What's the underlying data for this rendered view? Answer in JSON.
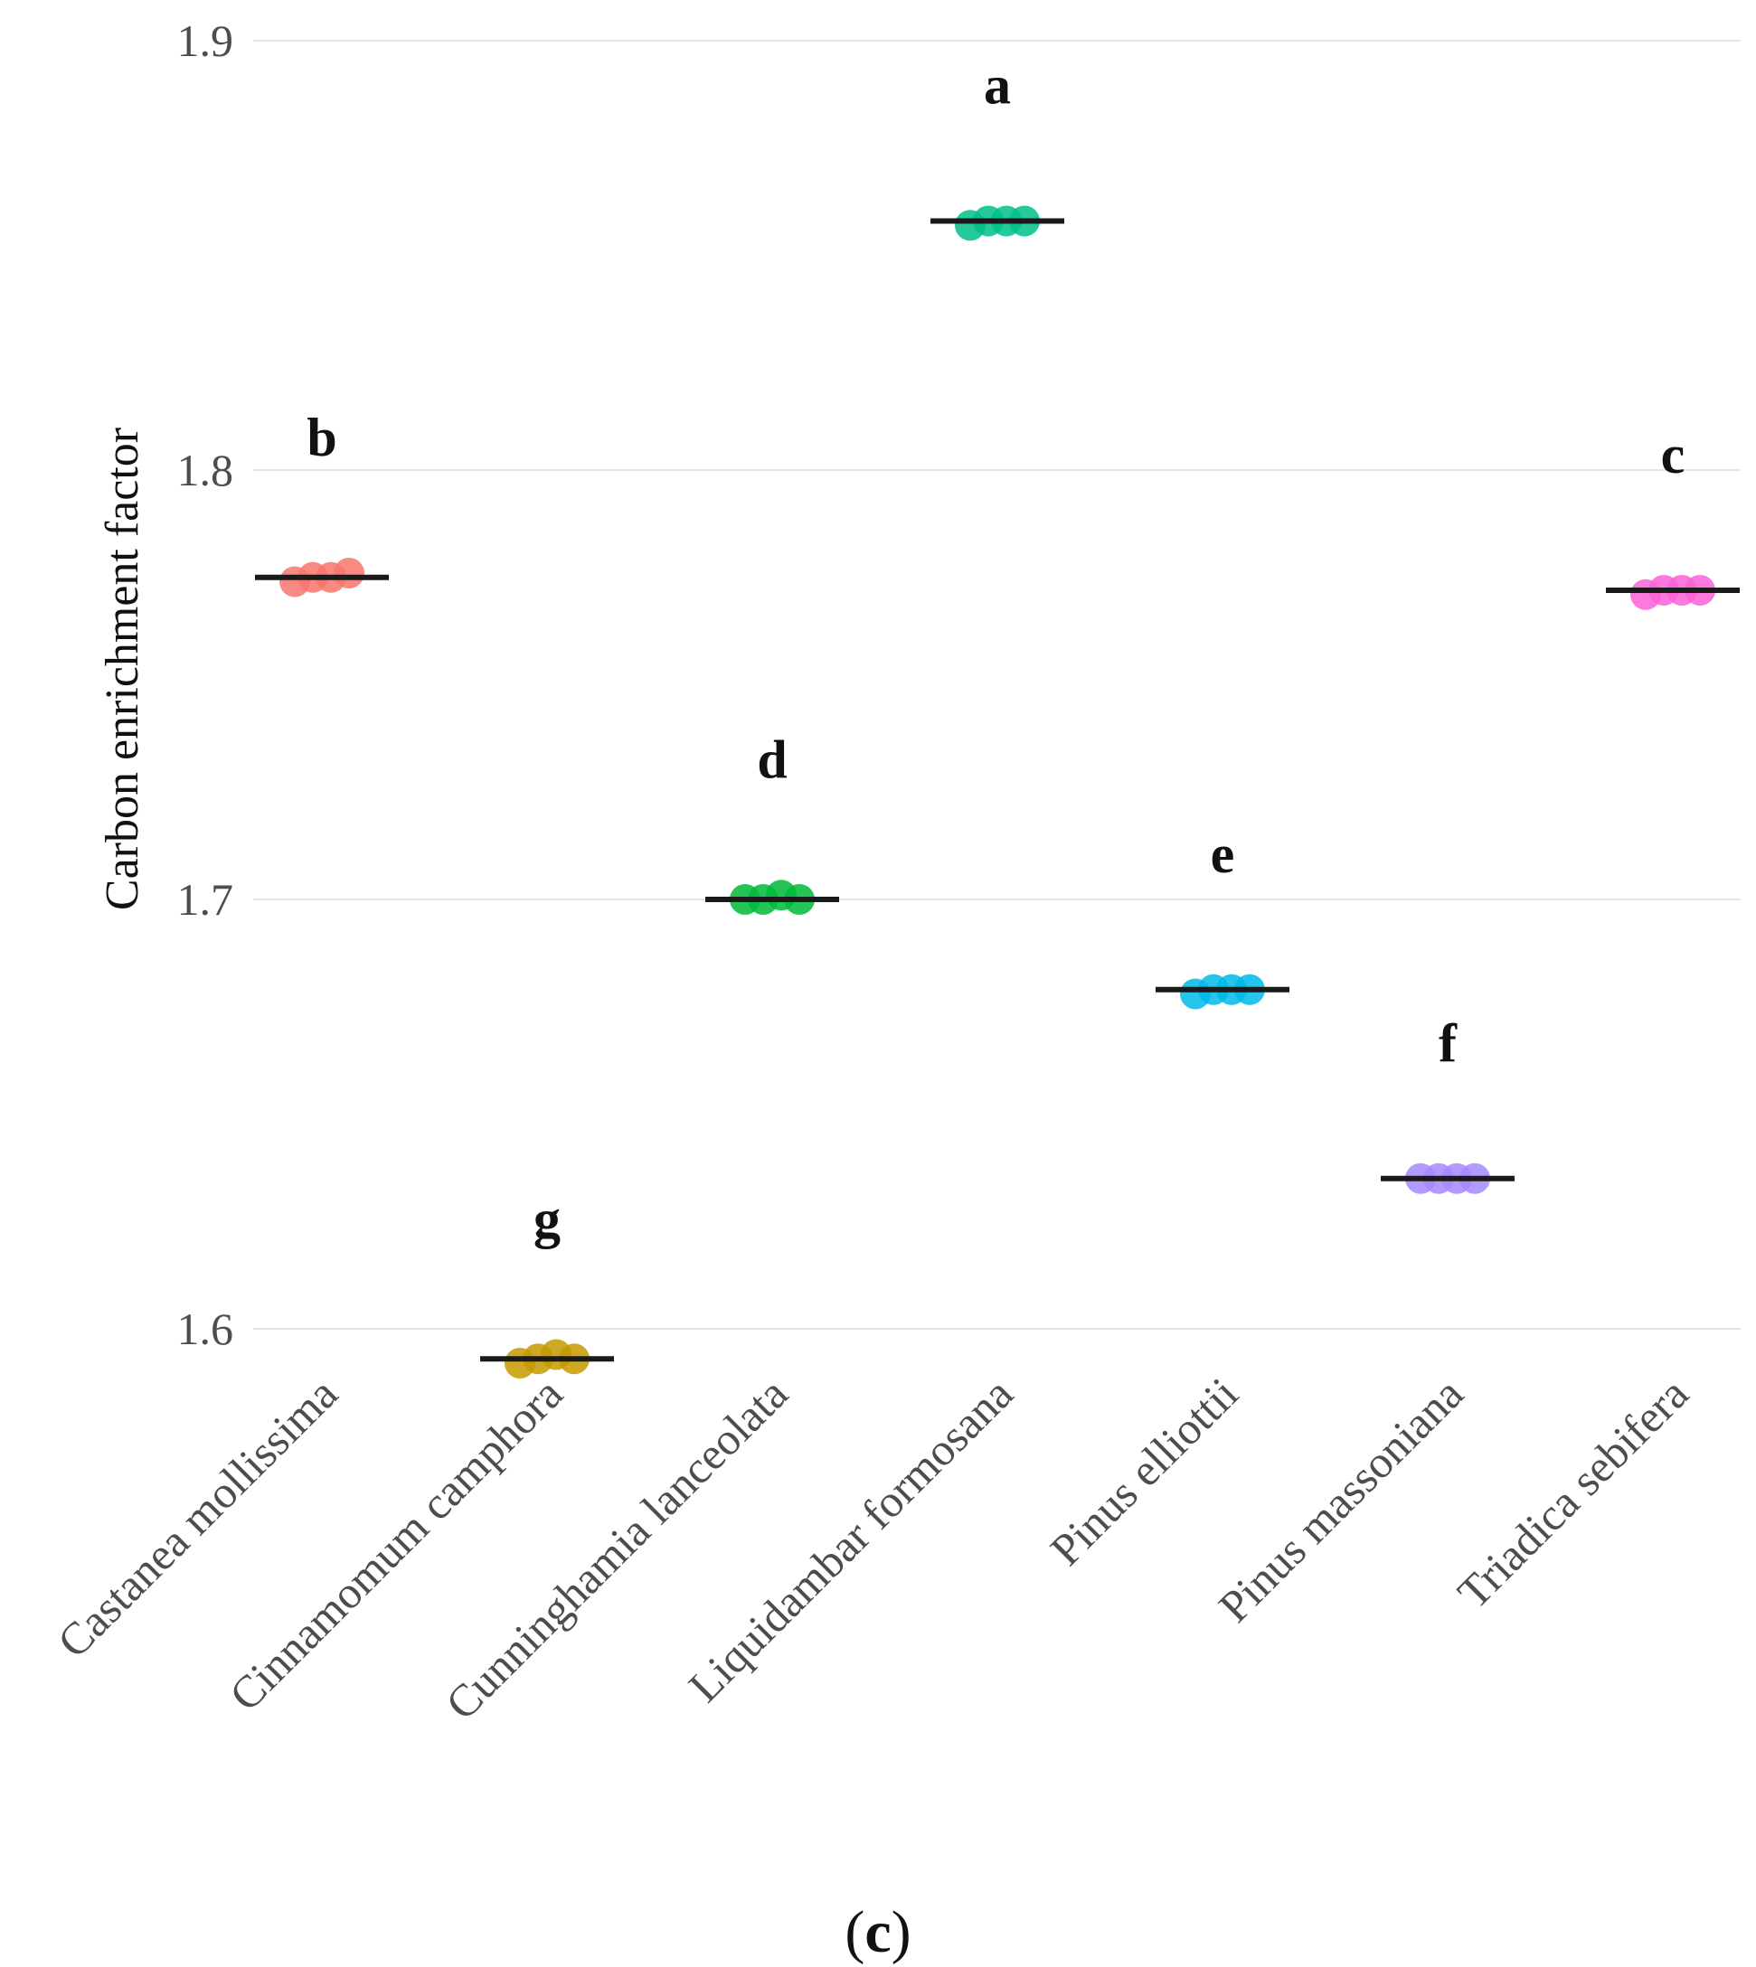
{
  "chart_data": {
    "type": "scatter",
    "ylabel": "Carbon enrichment factor",
    "xlabel": "",
    "ylim": [
      1.57,
      1.9
    ],
    "yticks": [
      1.6,
      1.7,
      1.8,
      1.9
    ],
    "ytick_labels": [
      "1.6",
      "1.7",
      "1.8",
      "1.9"
    ],
    "grid": true,
    "legend": "none",
    "categories": [
      "Castanea mollissima",
      "Cinnamomum camphora",
      "Cunninghamia lanceolata",
      "Liquidambar formosana",
      "Pinus elliottii",
      "Pinus massoniana",
      "Triadica sebifera"
    ],
    "series": [
      {
        "name": "Castanea mollissima",
        "values": [
          1.774,
          1.775,
          1.775,
          1.776
        ],
        "median": 1.775,
        "letter": "b",
        "color": "#F8766D"
      },
      {
        "name": "Cinnamomum camphora",
        "values": [
          1.592,
          1.593,
          1.594,
          1.593
        ],
        "median": 1.593,
        "letter": "g",
        "color": "#C49A00"
      },
      {
        "name": "Cunninghamia lanceolata",
        "values": [
          1.7,
          1.7,
          1.701,
          1.7
        ],
        "median": 1.7,
        "letter": "d",
        "color": "#00BA38"
      },
      {
        "name": "Liquidambar formosana",
        "values": [
          1.857,
          1.858,
          1.858,
          1.858
        ],
        "median": 1.858,
        "letter": "a",
        "color": "#00BF88"
      },
      {
        "name": "Pinus elliottii",
        "values": [
          1.678,
          1.679,
          1.679,
          1.679
        ],
        "median": 1.679,
        "letter": "e",
        "color": "#00B8E7"
      },
      {
        "name": "Pinus massoniana",
        "values": [
          1.635,
          1.635,
          1.635,
          1.635
        ],
        "median": 1.635,
        "letter": "f",
        "color": "#A58AFF"
      },
      {
        "name": "Triadica sebifera",
        "values": [
          1.771,
          1.772,
          1.772,
          1.772
        ],
        "median": 1.772,
        "letter": "c",
        "color": "#FB61D7"
      }
    ]
  },
  "caption": {
    "open": "(",
    "letter": "c",
    "close": ")"
  }
}
